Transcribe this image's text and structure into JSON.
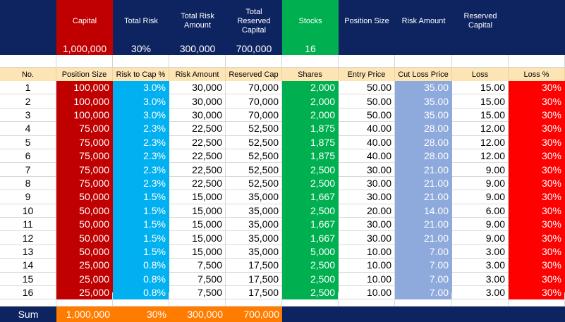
{
  "summary": {
    "headers": [
      "",
      "Capital",
      "Total Risk",
      "Total Risk Amount",
      "Total Reserved Capital",
      "Stocks",
      "Position Size",
      "Risk Amount",
      "Reserved Capital",
      ""
    ],
    "values": [
      "",
      "1,000,000",
      "30%",
      "300,000",
      "700,000",
      "16",
      "",
      "",
      "",
      ""
    ]
  },
  "columns": [
    "No.",
    "Position Size",
    "Risk to Cap %",
    "Risk Amount",
    "Reserved Cap",
    "Shares",
    "Entry Price",
    "Cut Loss Price",
    "Loss",
    "Loss %"
  ],
  "rows": [
    [
      "1",
      "100,000",
      "3.0%",
      "30,000",
      "70,000",
      "2,000",
      "50.00",
      "35.00",
      "15.00",
      "30%"
    ],
    [
      "2",
      "100,000",
      "3.0%",
      "30,000",
      "70,000",
      "2,000",
      "50.00",
      "35.00",
      "15.00",
      "30%"
    ],
    [
      "3",
      "100,000",
      "3.0%",
      "30,000",
      "70,000",
      "2,000",
      "50.00",
      "35.00",
      "15.00",
      "30%"
    ],
    [
      "4",
      "75,000",
      "2.3%",
      "22,500",
      "52,500",
      "1,875",
      "40.00",
      "28.00",
      "12.00",
      "30%"
    ],
    [
      "5",
      "75,000",
      "2.3%",
      "22,500",
      "52,500",
      "1,875",
      "40.00",
      "28.00",
      "12.00",
      "30%"
    ],
    [
      "6",
      "75,000",
      "2.3%",
      "22,500",
      "52,500",
      "1,875",
      "40.00",
      "28.00",
      "12.00",
      "30%"
    ],
    [
      "7",
      "75,000",
      "2.3%",
      "22,500",
      "52,500",
      "2,500",
      "30.00",
      "21.00",
      "9.00",
      "30%"
    ],
    [
      "8",
      "75,000",
      "2.3%",
      "22,500",
      "52,500",
      "2,500",
      "30.00",
      "21.00",
      "9.00",
      "30%"
    ],
    [
      "9",
      "50,000",
      "1.5%",
      "15,000",
      "35,000",
      "1,667",
      "30.00",
      "21.00",
      "9.00",
      "30%"
    ],
    [
      "10",
      "50,000",
      "1.5%",
      "15,000",
      "35,000",
      "2,500",
      "20.00",
      "14.00",
      "6.00",
      "30%"
    ],
    [
      "11",
      "50,000",
      "1.5%",
      "15,000",
      "35,000",
      "1,667",
      "30.00",
      "21.00",
      "9.00",
      "30%"
    ],
    [
      "12",
      "50,000",
      "1.5%",
      "15,000",
      "35,000",
      "1,667",
      "30.00",
      "21.00",
      "9.00",
      "30%"
    ],
    [
      "13",
      "50,000",
      "1.5%",
      "15,000",
      "35,000",
      "5,000",
      "10.00",
      "7.00",
      "3.00",
      "30%"
    ],
    [
      "14",
      "25,000",
      "0.8%",
      "7,500",
      "17,500",
      "2,500",
      "10.00",
      "7.00",
      "3.00",
      "30%"
    ],
    [
      "15",
      "25,000",
      "0.8%",
      "7,500",
      "17,500",
      "2,500",
      "10.00",
      "7.00",
      "3.00",
      "30%"
    ],
    [
      "16",
      "25,000",
      "0.8%",
      "7,500",
      "17,500",
      "2,500",
      "10.00",
      "7.00",
      "3.00",
      "30%"
    ]
  ],
  "sum": [
    "Sum",
    "1,000,000",
    "30%",
    "300,000",
    "700,000",
    "",
    "",
    "",
    "",
    ""
  ],
  "colors": {
    "navy": "#0e2461",
    "red": "#c00000",
    "green": "#00b050",
    "cyan": "#00b0f0",
    "lightblue": "#8ea9db",
    "brightred": "#ff0000",
    "orange": "#ff7c00",
    "header_bg": "#fce4b4"
  }
}
